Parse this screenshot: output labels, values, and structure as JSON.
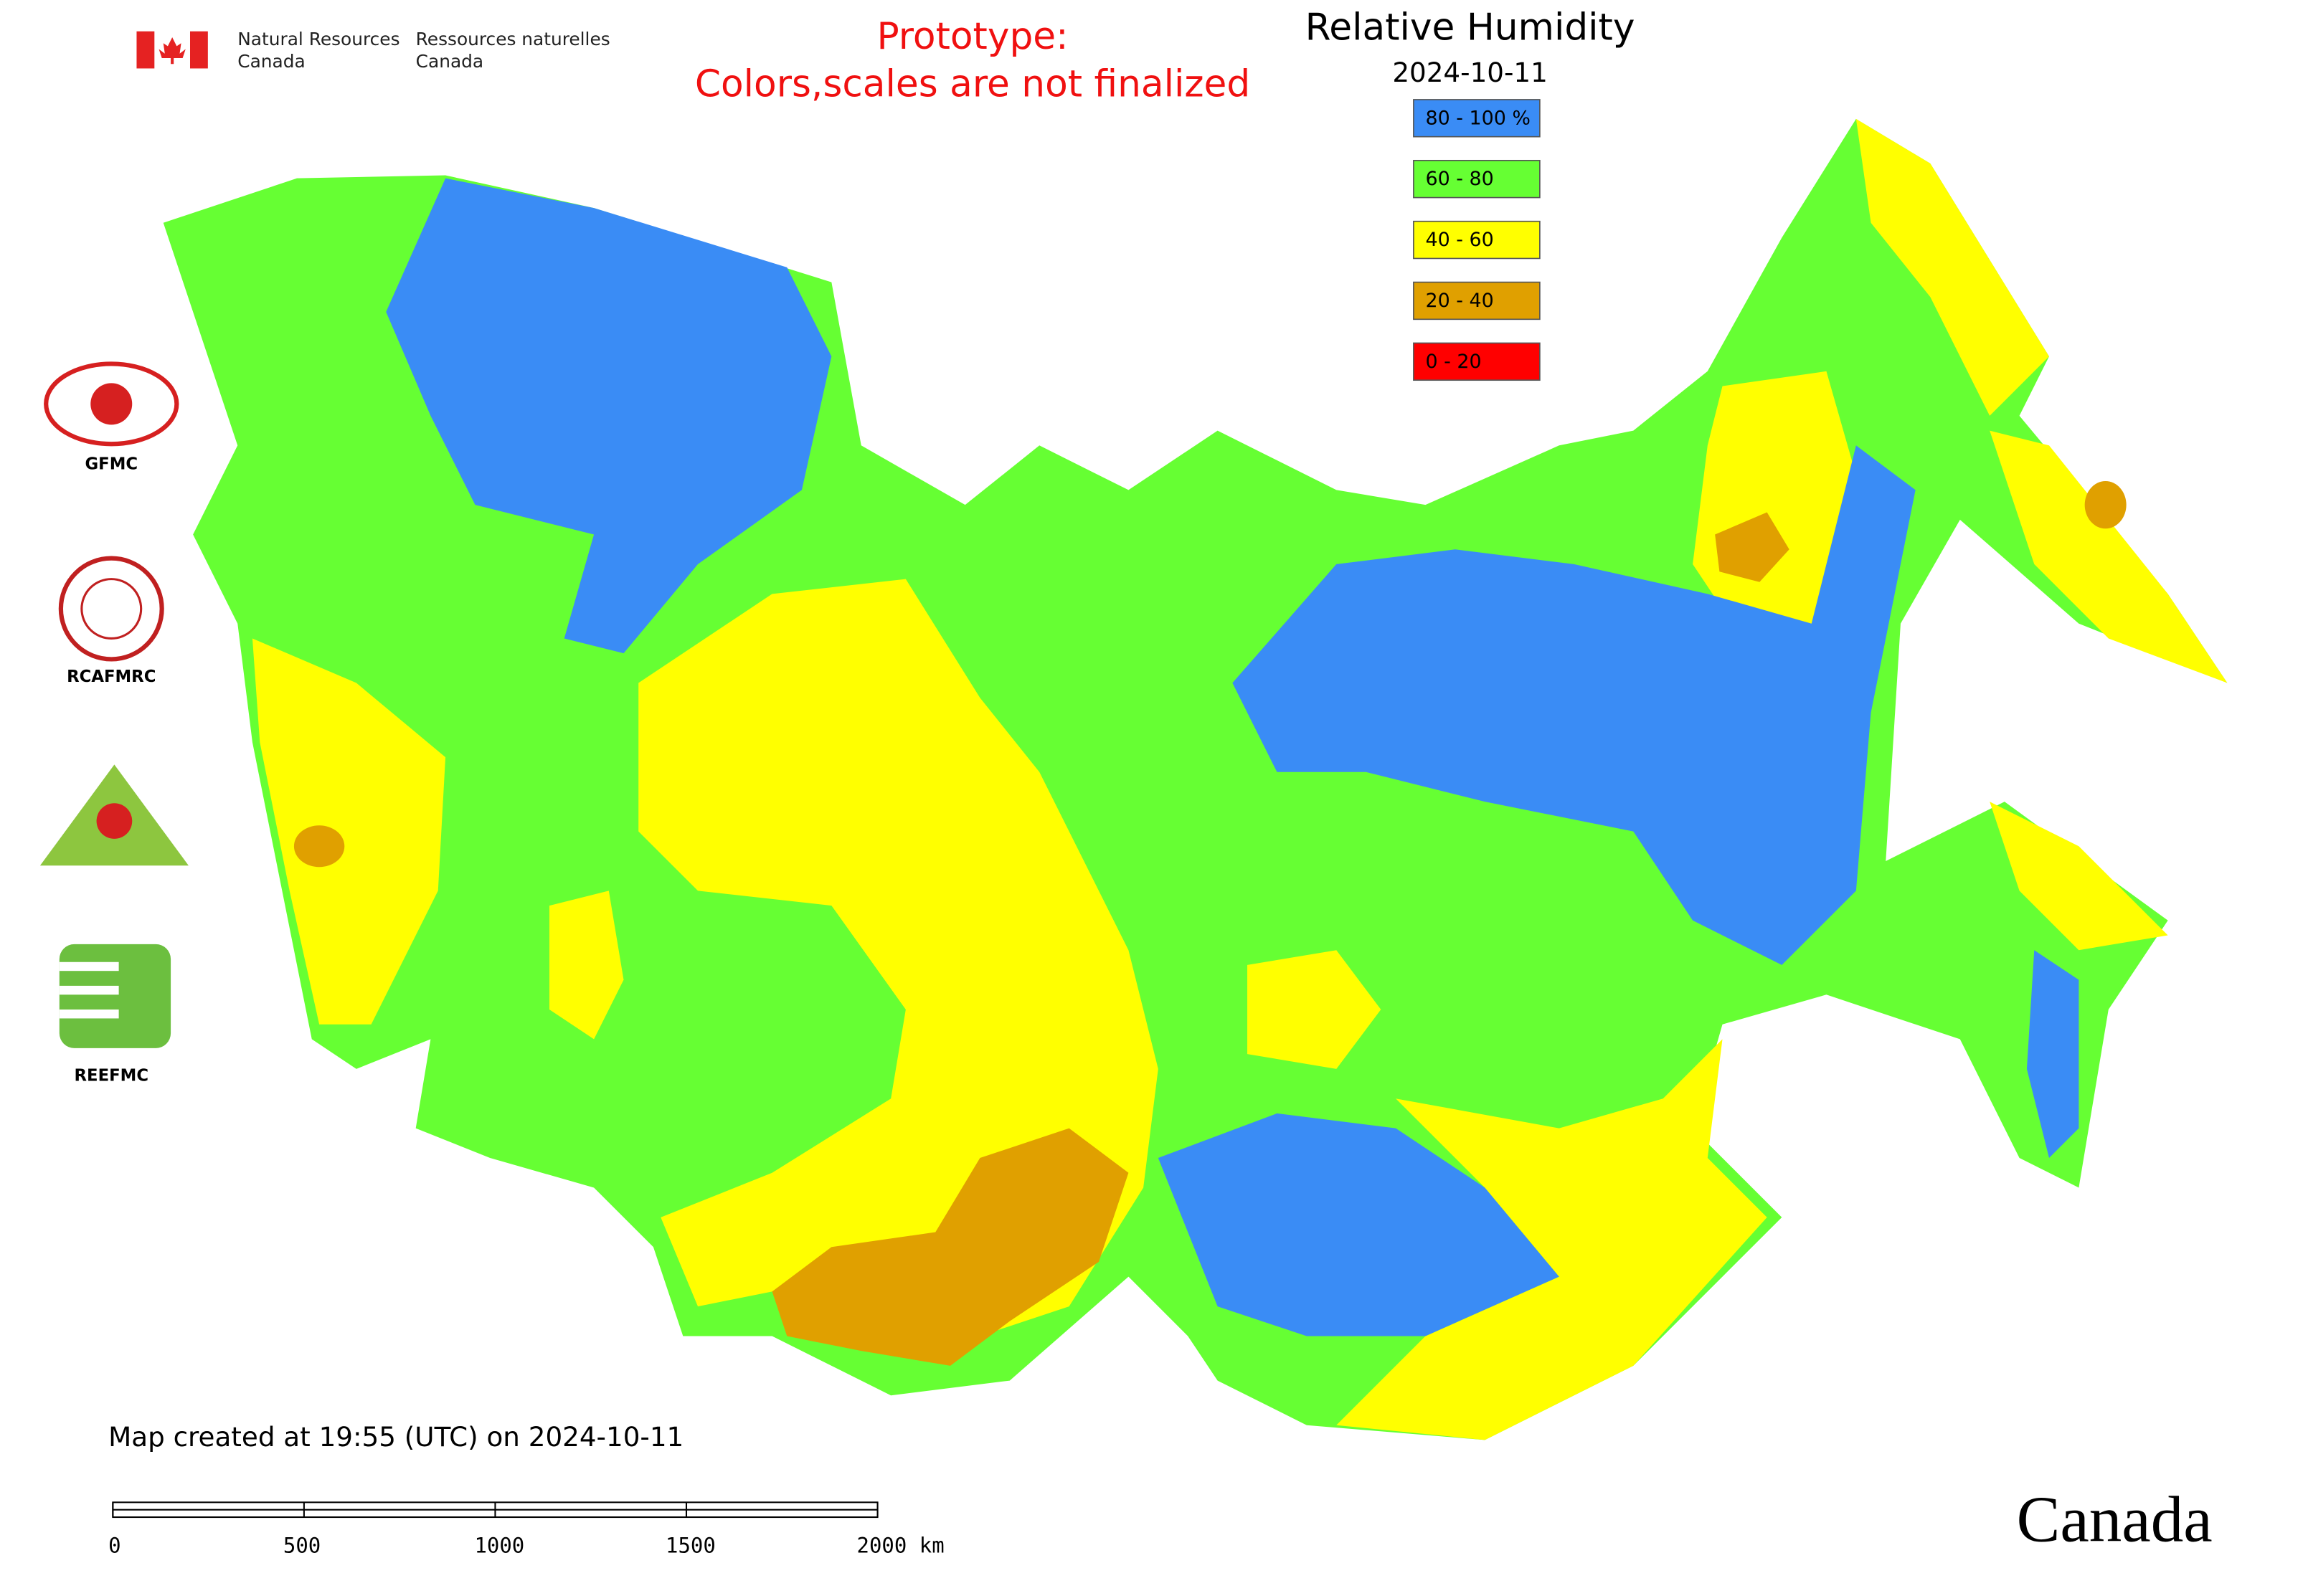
{
  "header": {
    "agency_en": [
      "Natural Resources",
      "Canada"
    ],
    "agency_fr": [
      "Ressources naturelles",
      "Canada"
    ]
  },
  "notice": [
    "Prototype:",
    "Colors,scales are not finalized"
  ],
  "legend": {
    "title": "Relative Humidity",
    "date": "2024-10-11",
    "items": [
      {
        "label": "80 - 100 %",
        "color": "#3a8cf5"
      },
      {
        "label": "60 - 80",
        "color": "#66ff33"
      },
      {
        "label": "40 - 60",
        "color": "#ffff00"
      },
      {
        "label": "20 - 40",
        "color": "#e0a000"
      },
      {
        "label": "0 - 20",
        "color": "#ff0000"
      }
    ]
  },
  "logos": [
    "GFMC",
    "RCAFMRC",
    "REEFMC"
  ],
  "footer": {
    "created": "Map created at 19:55 (UTC) on 2024-10-11",
    "wordmark": "Canada"
  },
  "scale_bar": [
    "0",
    "500",
    "1000",
    "1500",
    "2000 km"
  ]
}
